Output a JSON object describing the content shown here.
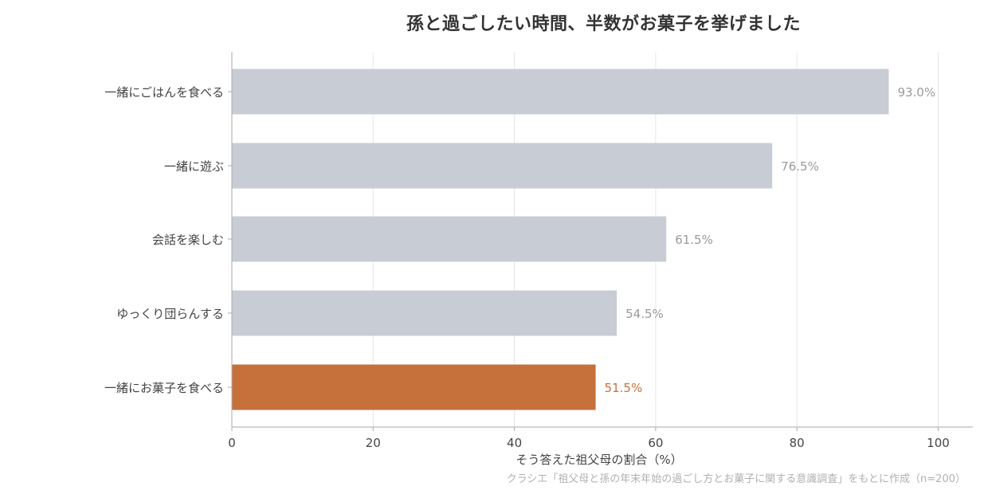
{
  "chart_data": {
    "type": "bar",
    "orientation": "horizontal",
    "title": "孫と過ごしたい時間、半数がお菓子を挙げました",
    "xlabel": "そう答えた祖父母の割合（%）",
    "ylabel": "",
    "xlim": [
      0,
      105
    ],
    "xticks": [
      0,
      20,
      40,
      60,
      80,
      100
    ],
    "grid": "vertical",
    "categories": [
      "一緒にごはんを食べる",
      "一緒に遊ぶ",
      "会話を楽しむ",
      "ゆっくり団らんする",
      "一緒にお菓子を食べる"
    ],
    "values": [
      93.0,
      76.5,
      61.5,
      54.5,
      51.5
    ],
    "value_labels": [
      "93.0%",
      "76.5%",
      "61.5%",
      "54.5%",
      "51.5%"
    ],
    "highlight_index": 4,
    "colors": {
      "default_bar": "#c8ccd5",
      "highlight_bar": "#c6703c",
      "default_label": "#9a9a9a",
      "highlight_label": "#c6703c",
      "grid": "#e6e6e6",
      "axis": "#aaaaaa"
    },
    "source": "クラシエ「祖父母と孫の年末年始の過ごし方とお菓子に関する意識調査」をもとに作成（n=200）"
  }
}
